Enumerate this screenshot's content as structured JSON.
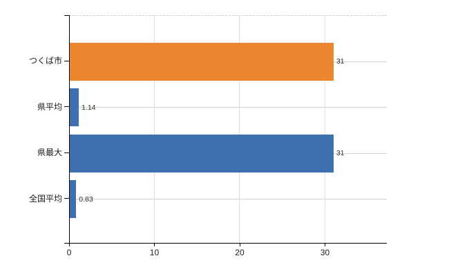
{
  "chart_data": {
    "type": "bar",
    "orientation": "horizontal",
    "title": "",
    "xlabel": "",
    "ylabel": "",
    "categories": [
      "つくば市",
      "県平均",
      "県最大",
      "全国平均"
    ],
    "values": [
      31,
      1.14,
      31,
      0.83
    ],
    "value_labels": [
      "31",
      "1.14",
      "31",
      "0.83"
    ],
    "bar_colors": [
      "#EC8730",
      "#3E6FAF",
      "#3E6FAF",
      "#3E6FAF"
    ],
    "x_ticks": [
      0,
      10,
      20,
      30
    ],
    "x_tick_labels": [
      "0",
      "10",
      "20",
      "30"
    ],
    "xlim": [
      0,
      37.25
    ],
    "grid": true,
    "legend": false
  },
  "colors": {
    "orange_bar": "#EC8730",
    "blue_bar": "#3E6FAF",
    "h_gridline": "#ccd4cf",
    "v_gridline": "#dedede",
    "top_border_dashed": "#c9c9c9",
    "axis": "#000000",
    "text": "#1a1a1a",
    "background": "#ffffff"
  }
}
